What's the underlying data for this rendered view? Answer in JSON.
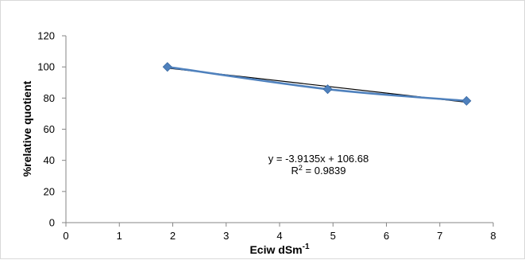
{
  "chart_data": {
    "type": "scatter",
    "xlabel_main": "Eciw dSm",
    "xlabel_sup": "-1",
    "ylabel": "%relative quotient",
    "xlim": [
      0,
      8
    ],
    "ylim": [
      0,
      120
    ],
    "x_ticks": [
      "0",
      "1",
      "2",
      "3",
      "4",
      "5",
      "6",
      "7",
      "8"
    ],
    "y_ticks": [
      "0",
      "20",
      "40",
      "60",
      "80",
      "100",
      "120"
    ],
    "grid": false,
    "series": [
      {
        "x": [
          1.9,
          4.9,
          7.5
        ],
        "y": [
          100,
          85.7,
          78.2
        ],
        "color": "#4f81bd",
        "marker": "diamond"
      }
    ],
    "trendline": {
      "slope": -3.9135,
      "intercept": 106.68,
      "color": "#000000",
      "equation": "y = -3.9135x + 106.68",
      "r2_prefix": "R",
      "r2_sup": "2",
      "r2_value": " = 0.9839"
    }
  }
}
